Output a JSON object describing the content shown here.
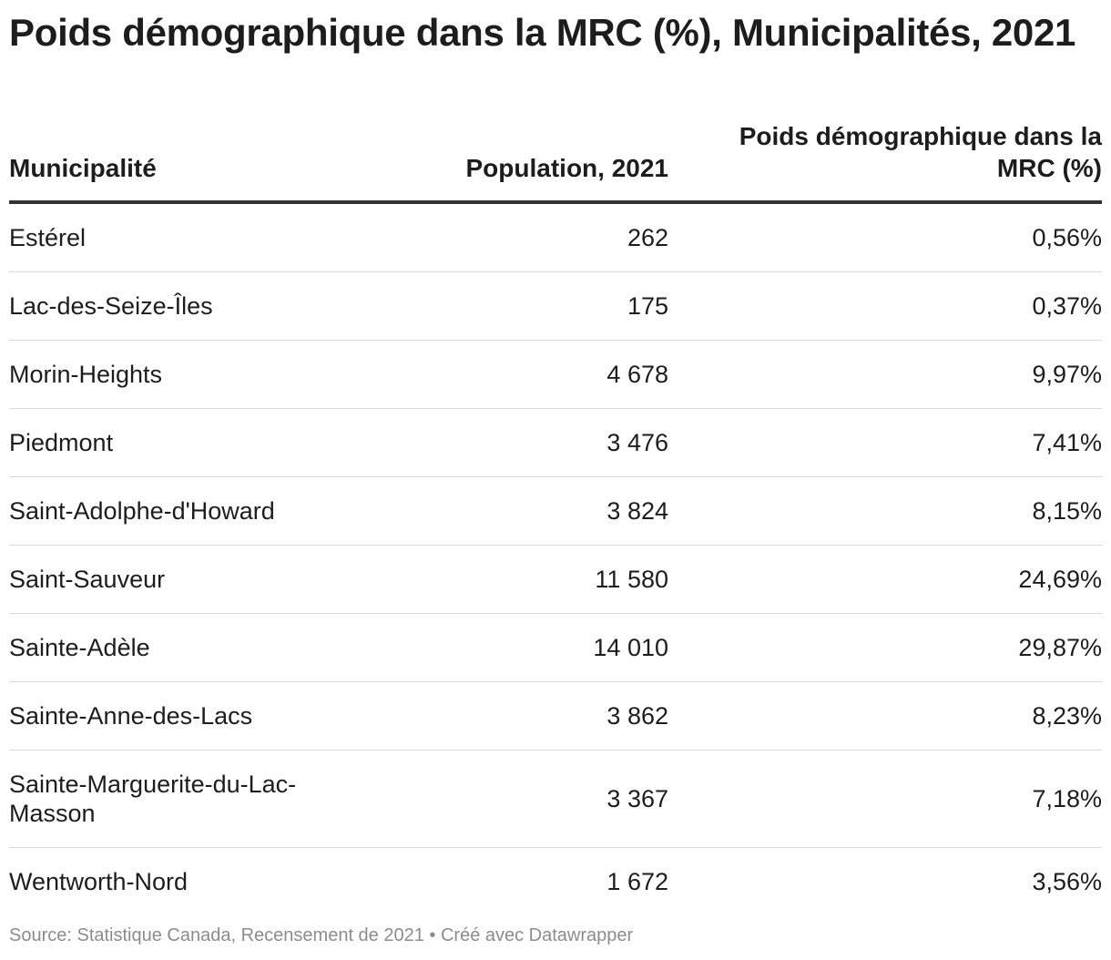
{
  "title": "Poids démographique dans la MRC (%), Municipalités, 2021",
  "chart_data": {
    "type": "table",
    "columns": [
      "Municipalité",
      "Population, 2021",
      "Poids démographique dans la MRC (%)"
    ],
    "rows": [
      {
        "municipalite": "Estérel",
        "population": "262",
        "poids": "0,56%"
      },
      {
        "municipalite": "Lac-des-Seize-Îles",
        "population": "175",
        "poids": "0,37%"
      },
      {
        "municipalite": "Morin-Heights",
        "population": "4 678",
        "poids": "9,97%"
      },
      {
        "municipalite": "Piedmont",
        "population": "3 476",
        "poids": "7,41%"
      },
      {
        "municipalite": "Saint-Adolphe-d'Howard",
        "population": "3 824",
        "poids": "8,15%"
      },
      {
        "municipalite": "Saint-Sauveur",
        "population": "11 580",
        "poids": "24,69%"
      },
      {
        "municipalite": "Sainte-Adèle",
        "population": "14 010",
        "poids": "29,87%"
      },
      {
        "municipalite": "Sainte-Anne-des-Lacs",
        "population": "3 862",
        "poids": "8,23%"
      },
      {
        "municipalite": "Sainte-Marguerite-du-Lac-Masson",
        "population": "3 367",
        "poids": "7,18%"
      },
      {
        "municipalite": "Wentworth-Nord",
        "population": "1 672",
        "poids": "3,56%"
      }
    ]
  },
  "footer": {
    "source": "Source: Statistique Canada, Recensement de 2021 • Créé avec Datawrapper"
  }
}
